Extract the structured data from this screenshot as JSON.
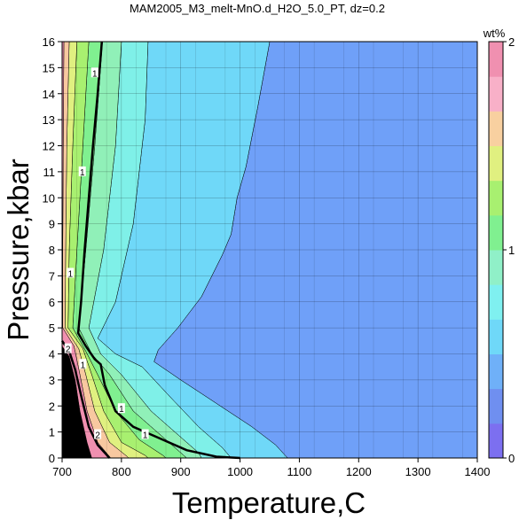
{
  "chart_data": {
    "type": "contour",
    "title": "MAM2005_M3_melt-MnO.d_H2O_5.0_PT, dz=0.2",
    "xlabel": "Temperature,C",
    "ylabel": "Pressure,kbar",
    "xlim": [
      700,
      1400
    ],
    "ylim": [
      0,
      16
    ],
    "xticks": [
      700,
      800,
      900,
      1000,
      1100,
      1200,
      1300,
      1400
    ],
    "yticks": [
      0,
      1,
      2,
      3,
      4,
      5,
      6,
      7,
      8,
      9,
      10,
      11,
      12,
      13,
      14,
      15,
      16
    ],
    "grid": true,
    "colorbar": {
      "label": "wt%",
      "range": [
        0,
        2
      ],
      "ticks": [
        0,
        1,
        2
      ],
      "step": 0.2,
      "colors": [
        "#7c6ff0",
        "#6f8ff0",
        "#6fb0f8",
        "#6fd8f8",
        "#7ff0f0",
        "#90f0c8",
        "#80f090",
        "#a8f070",
        "#e0f080",
        "#f8d0a0",
        "#f8b0c8",
        "#f090b0"
      ]
    },
    "contour_labels": [
      "1",
      "1",
      "1",
      "1",
      "2",
      "1",
      "2",
      "1"
    ],
    "bands": [
      {
        "level": 0.4,
        "color": "#6fa0f8",
        "boundary": [
          [
            1400,
            0
          ],
          [
            1400,
            16
          ],
          [
            1050,
            16
          ],
          [
            1030,
            13.5
          ],
          [
            1010,
            11.2
          ],
          [
            995,
            10
          ],
          [
            985,
            8.6
          ],
          [
            970,
            7.8
          ],
          [
            935,
            6.2
          ],
          [
            895,
            5
          ],
          [
            862,
            4.15
          ],
          [
            855,
            3.7
          ],
          [
            900,
            3
          ],
          [
            960,
            2.1
          ],
          [
            1020,
            1.2
          ],
          [
            1060,
            0.5
          ],
          [
            1080,
            0
          ]
        ]
      },
      {
        "level": 0.6,
        "color": "#6fd8f8",
        "boundary": [
          [
            1080,
            0
          ],
          [
            1060,
            0.5
          ],
          [
            1020,
            1.2
          ],
          [
            960,
            2.1
          ],
          [
            900,
            3
          ],
          [
            855,
            3.7
          ],
          [
            862,
            4.15
          ],
          [
            895,
            5
          ],
          [
            935,
            6.2
          ],
          [
            970,
            7.8
          ],
          [
            985,
            8.6
          ],
          [
            995,
            10
          ],
          [
            1010,
            11.2
          ],
          [
            1030,
            13.5
          ],
          [
            1050,
            16
          ],
          [
            845,
            16
          ],
          [
            840,
            13
          ],
          [
            820,
            9
          ],
          [
            790,
            6
          ],
          [
            760,
            4.6
          ],
          [
            790,
            4
          ],
          [
            835,
            3.5
          ],
          [
            880,
            2.4
          ],
          [
            930,
            1.2
          ],
          [
            970,
            0.4
          ],
          [
            985,
            0
          ]
        ]
      },
      {
        "level": 0.8,
        "color": "#7ff0e8",
        "boundary": [
          [
            985,
            0
          ],
          [
            970,
            0.4
          ],
          [
            930,
            1.2
          ],
          [
            880,
            2.4
          ],
          [
            835,
            3.5
          ],
          [
            790,
            4
          ],
          [
            760,
            4.6
          ],
          [
            790,
            6
          ],
          [
            820,
            9
          ],
          [
            840,
            13
          ],
          [
            845,
            16
          ],
          [
            800,
            16
          ],
          [
            790,
            12
          ],
          [
            770,
            8
          ],
          [
            745,
            5
          ],
          [
            765,
            4
          ],
          [
            800,
            3.2
          ],
          [
            850,
            1.8
          ],
          [
            900,
            0.8
          ],
          [
            930,
            0.2
          ],
          [
            935,
            0
          ]
        ]
      },
      {
        "level": 1.0,
        "color": "#90f0b8",
        "boundary": [
          [
            935,
            0
          ],
          [
            930,
            0.2
          ],
          [
            900,
            0.8
          ],
          [
            850,
            1.8
          ],
          [
            800,
            3.2
          ],
          [
            765,
            4
          ],
          [
            745,
            5
          ],
          [
            770,
            8
          ],
          [
            790,
            12
          ],
          [
            800,
            16
          ],
          [
            768,
            16
          ],
          [
            755,
            12
          ],
          [
            740,
            8
          ],
          [
            728,
            5
          ],
          [
            750,
            4
          ],
          [
            780,
            3.2
          ],
          [
            820,
            1.8
          ],
          [
            870,
            0.8
          ],
          [
            905,
            0.1
          ],
          [
            910,
            0
          ]
        ]
      },
      {
        "level": 1.2,
        "color": "#80f090",
        "boundary": [
          [
            910,
            0
          ],
          [
            905,
            0.1
          ],
          [
            870,
            0.8
          ],
          [
            820,
            1.8
          ],
          [
            780,
            3.2
          ],
          [
            750,
            4
          ],
          [
            728,
            5
          ],
          [
            740,
            8
          ],
          [
            755,
            12
          ],
          [
            768,
            16
          ],
          [
            745,
            16
          ],
          [
            735,
            12
          ],
          [
            725,
            8
          ],
          [
            718,
            5
          ],
          [
            740,
            4.1
          ],
          [
            760,
            3.2
          ],
          [
            790,
            1.8
          ],
          [
            830,
            0.7
          ],
          [
            870,
            0.1
          ],
          [
            875,
            0
          ]
        ]
      },
      {
        "level": 1.4,
        "color": "#a8f070",
        "boundary": [
          [
            875,
            0
          ],
          [
            870,
            0.1
          ],
          [
            830,
            0.7
          ],
          [
            790,
            1.8
          ],
          [
            760,
            3.2
          ],
          [
            740,
            4.1
          ],
          [
            718,
            5
          ],
          [
            725,
            8
          ],
          [
            735,
            12
          ],
          [
            745,
            16
          ],
          [
            725,
            16
          ],
          [
            718,
            12
          ],
          [
            712,
            8
          ],
          [
            710,
            5
          ],
          [
            735,
            4.2
          ],
          [
            750,
            3.2
          ],
          [
            770,
            1.8
          ],
          [
            800,
            0.6
          ],
          [
            840,
            0.1
          ],
          [
            845,
            0
          ]
        ]
      },
      {
        "level": 1.6,
        "color": "#e0f080",
        "boundary": [
          [
            845,
            0
          ],
          [
            840,
            0.1
          ],
          [
            800,
            0.6
          ],
          [
            770,
            1.8
          ],
          [
            750,
            3.2
          ],
          [
            735,
            4.2
          ],
          [
            710,
            5
          ],
          [
            712,
            8
          ],
          [
            718,
            12
          ],
          [
            725,
            16
          ],
          [
            712,
            16
          ],
          [
            708,
            12
          ],
          [
            706,
            8
          ],
          [
            705,
            5
          ],
          [
            728,
            4.2
          ],
          [
            740,
            3.2
          ],
          [
            755,
            1.8
          ],
          [
            780,
            0.6
          ],
          [
            810,
            0.05
          ],
          [
            812,
            0
          ]
        ]
      },
      {
        "level": 1.8,
        "color": "#f8c8a0",
        "boundary": [
          [
            812,
            0
          ],
          [
            810,
            0.05
          ],
          [
            780,
            0.6
          ],
          [
            755,
            1.8
          ],
          [
            740,
            3.2
          ],
          [
            728,
            4.2
          ],
          [
            705,
            5
          ],
          [
            706,
            8
          ],
          [
            708,
            12
          ],
          [
            712,
            16
          ],
          [
            703,
            16
          ],
          [
            702,
            12
          ],
          [
            701,
            8
          ],
          [
            701,
            5
          ],
          [
            720,
            4.3
          ],
          [
            730,
            3.2
          ],
          [
            742,
            1.8
          ],
          [
            760,
            0.6
          ],
          [
            780,
            0.05
          ],
          [
            782,
            0
          ]
        ]
      },
      {
        "level": 2.0,
        "color": "#f090b0",
        "boundary": [
          [
            782,
            0
          ],
          [
            780,
            0.05
          ],
          [
            760,
            0.6
          ],
          [
            742,
            1.8
          ],
          [
            730,
            3.2
          ],
          [
            720,
            4.3
          ],
          [
            701,
            5
          ],
          [
            701,
            8
          ],
          [
            702,
            12
          ],
          [
            703,
            16
          ],
          [
            700,
            16
          ],
          [
            700,
            0
          ]
        ]
      },
      {
        "level": 2.5,
        "color": "#000000",
        "boundary": [
          [
            700,
            0
          ],
          [
            700,
            4.3
          ],
          [
            712,
            3.9
          ],
          [
            722,
            3
          ],
          [
            730,
            1.8
          ],
          [
            742,
            0.6
          ],
          [
            750,
            0
          ]
        ]
      }
    ],
    "contours": [
      {
        "level": 1,
        "points": [
          [
            767,
            16
          ],
          [
            760,
            14
          ],
          [
            752,
            12
          ],
          [
            745,
            10
          ],
          [
            738,
            8
          ],
          [
            732,
            6
          ],
          [
            727,
            4.8
          ],
          [
            740,
            4.3
          ],
          [
            755,
            3.8
          ],
          [
            765,
            3.6
          ],
          [
            772,
            2.8
          ],
          [
            790,
            1.8
          ],
          [
            820,
            1.2
          ],
          [
            860,
            0.8
          ],
          [
            910,
            0.3
          ],
          [
            960,
            0.05
          ],
          [
            1000,
            0
          ]
        ]
      },
      {
        "level": 2,
        "points": [
          [
            700,
            4.5
          ],
          [
            712,
            4.1
          ],
          [
            722,
            3.4
          ],
          [
            732,
            2.4
          ],
          [
            745,
            1.2
          ],
          [
            760,
            0.5
          ],
          [
            780,
            0
          ]
        ]
      }
    ]
  }
}
